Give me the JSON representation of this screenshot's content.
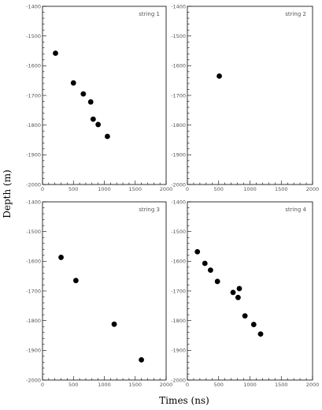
{
  "figure": {
    "ylabel": "Depth (m)",
    "xlabel": "Times (ns)"
  },
  "chart_data": [
    {
      "type": "scatter",
      "panel_label": "string 1",
      "xlim": [
        0,
        2000
      ],
      "ylim": [
        -2000,
        -1400
      ],
      "x_ticks": [
        "0",
        "500",
        "1000",
        "1500",
        "2000"
      ],
      "y_ticks": [
        "-1400",
        "-1500",
        "-1600",
        "-1700",
        "-1800",
        "-1900",
        "-2000"
      ],
      "points": [
        {
          "x": 210,
          "y": -1558
        },
        {
          "x": 500,
          "y": -1658
        },
        {
          "x": 660,
          "y": -1695
        },
        {
          "x": 780,
          "y": -1722
        },
        {
          "x": 820,
          "y": -1780
        },
        {
          "x": 900,
          "y": -1798
        },
        {
          "x": 1050,
          "y": -1838
        }
      ]
    },
    {
      "type": "scatter",
      "panel_label": "string 2",
      "xlim": [
        0,
        2000
      ],
      "ylim": [
        -2000,
        -1400
      ],
      "x_ticks": [
        "0",
        "500",
        "1000",
        "1500",
        "2000"
      ],
      "y_ticks": [
        "-1400",
        "-1500",
        "-1600",
        "-1700",
        "-1800",
        "-1900",
        "-2000"
      ],
      "points": [
        {
          "x": 510,
          "y": -1635
        }
      ]
    },
    {
      "type": "scatter",
      "panel_label": "string 3",
      "xlim": [
        0,
        2000
      ],
      "ylim": [
        -2000,
        -1400
      ],
      "x_ticks": [
        "0",
        "500",
        "1000",
        "1500",
        "2000"
      ],
      "y_ticks": [
        "-1400",
        "-1500",
        "-1600",
        "-1700",
        "-1800",
        "-1900",
        "-2000"
      ],
      "points": [
        {
          "x": 300,
          "y": -1587
        },
        {
          "x": 540,
          "y": -1665
        },
        {
          "x": 1160,
          "y": -1812
        },
        {
          "x": 1600,
          "y": -1932
        }
      ]
    },
    {
      "type": "scatter",
      "panel_label": "string 4",
      "xlim": [
        0,
        2000
      ],
      "ylim": [
        -2000,
        -1400
      ],
      "x_ticks": [
        "0",
        "500",
        "1000",
        "1500",
        "2000"
      ],
      "y_ticks": [
        "-1400",
        "-1500",
        "-1600",
        "-1700",
        "-1800",
        "-1900",
        "-2000"
      ],
      "points": [
        {
          "x": 160,
          "y": -1568
        },
        {
          "x": 280,
          "y": -1607
        },
        {
          "x": 370,
          "y": -1630
        },
        {
          "x": 480,
          "y": -1668
        },
        {
          "x": 730,
          "y": -1705
        },
        {
          "x": 810,
          "y": -1722
        },
        {
          "x": 830,
          "y": -1692
        },
        {
          "x": 920,
          "y": -1784
        },
        {
          "x": 1060,
          "y": -1813
        },
        {
          "x": 1170,
          "y": -1845
        }
      ]
    }
  ]
}
